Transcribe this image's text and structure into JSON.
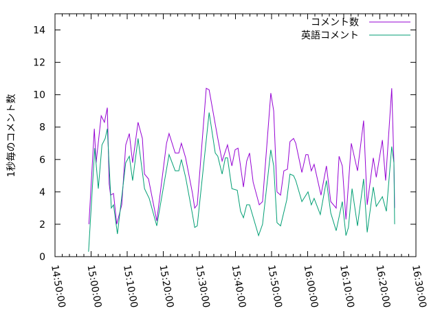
{
  "chart_data": {
    "type": "line",
    "title": "",
    "xlabel": "",
    "ylabel": "1秒毎のコメント数",
    "ylim": [
      0,
      15
    ],
    "yticks": [
      "0",
      "2",
      "4",
      "6",
      "8",
      "10",
      "12",
      "14"
    ],
    "xlim": [
      "14:50:00",
      "16:30:00"
    ],
    "xticks": [
      "14:50:00",
      "15:00:00",
      "15:10:00",
      "15:20:00",
      "15:30:00",
      "15:40:00",
      "15:50:00",
      "16:00:00",
      "16:10:00",
      "16:20:00",
      "16:30:00"
    ],
    "legend_position": "top-right",
    "series": [
      {
        "name": "コメント数",
        "color": "#9400d3",
        "points": [
          [
            "14:59:24",
            2.0
          ],
          [
            "15:00:54",
            7.9
          ],
          [
            "15:01:24",
            5.8
          ],
          [
            "15:02:48",
            8.7
          ],
          [
            "15:03:42",
            8.3
          ],
          [
            "15:04:30",
            9.2
          ],
          [
            "15:05:00",
            4.5
          ],
          [
            "15:05:24",
            3.8
          ],
          [
            "15:06:12",
            3.9
          ],
          [
            "15:07:06",
            2.0
          ],
          [
            "15:08:30",
            3.2
          ],
          [
            "15:09:36",
            6.9
          ],
          [
            "15:10:36",
            7.6
          ],
          [
            "15:11:30",
            5.8
          ],
          [
            "15:13:00",
            8.3
          ],
          [
            "15:14:12",
            7.3
          ],
          [
            "15:14:48",
            5.1
          ],
          [
            "15:15:54",
            4.8
          ],
          [
            "15:18:12",
            2.2
          ],
          [
            "15:20:54",
            7.0
          ],
          [
            "15:21:36",
            7.6
          ],
          [
            "15:23:18",
            6.4
          ],
          [
            "15:24:18",
            6.4
          ],
          [
            "15:25:00",
            7.0
          ],
          [
            "15:26:12",
            6.1
          ],
          [
            "15:28:06",
            3.9
          ],
          [
            "15:28:42",
            3.0
          ],
          [
            "15:29:24",
            3.2
          ],
          [
            "15:31:54",
            10.4
          ],
          [
            "15:32:42",
            10.3
          ],
          [
            "15:35:06",
            7.3
          ],
          [
            "15:36:18",
            5.9
          ],
          [
            "15:37:48",
            6.9
          ],
          [
            "15:39:00",
            5.6
          ],
          [
            "15:39:54",
            6.6
          ],
          [
            "15:40:42",
            6.7
          ],
          [
            "15:42:12",
            4.3
          ],
          [
            "15:43:06",
            5.9
          ],
          [
            "15:43:54",
            6.4
          ],
          [
            "15:44:54",
            4.6
          ],
          [
            "15:46:36",
            3.2
          ],
          [
            "15:47:30",
            3.4
          ],
          [
            "15:49:48",
            10.1
          ],
          [
            "15:50:36",
            9.0
          ],
          [
            "15:51:30",
            4.0
          ],
          [
            "15:52:30",
            3.8
          ],
          [
            "15:53:24",
            5.3
          ],
          [
            "15:54:24",
            5.4
          ],
          [
            "15:55:06",
            7.1
          ],
          [
            "15:56:06",
            7.3
          ],
          [
            "15:56:42",
            7.0
          ],
          [
            "15:58:24",
            5.2
          ],
          [
            "15:59:30",
            6.3
          ],
          [
            "16:00:06",
            6.3
          ],
          [
            "16:01:00",
            5.3
          ],
          [
            "16:01:48",
            5.7
          ],
          [
            "16:03:42",
            3.8
          ],
          [
            "16:05:12",
            5.6
          ],
          [
            "16:06:24",
            3.4
          ],
          [
            "16:07:54",
            3.0
          ],
          [
            "16:08:42",
            6.2
          ],
          [
            "16:09:36",
            5.6
          ],
          [
            "16:10:36",
            2.3
          ],
          [
            "16:12:06",
            7.0
          ],
          [
            "16:13:48",
            5.3
          ],
          [
            "16:15:30",
            8.4
          ],
          [
            "16:16:30",
            3.2
          ],
          [
            "16:18:12",
            6.1
          ],
          [
            "16:19:00",
            4.9
          ],
          [
            "16:20:42",
            7.2
          ],
          [
            "16:21:36",
            4.7
          ],
          [
            "16:23:18",
            10.4
          ],
          [
            "16:23:54",
            5.8
          ],
          [
            "16:24:06",
            3.0
          ]
        ]
      },
      {
        "name": "英語コメント",
        "color": "#009e73",
        "points": [
          [
            "14:59:18",
            0.3
          ],
          [
            "15:01:00",
            6.7
          ],
          [
            "15:02:00",
            4.2
          ],
          [
            "15:03:00",
            6.9
          ],
          [
            "15:03:54",
            7.3
          ],
          [
            "15:04:30",
            7.9
          ],
          [
            "15:05:36",
            3.0
          ],
          [
            "15:06:12",
            3.2
          ],
          [
            "15:07:18",
            1.4
          ],
          [
            "15:09:36",
            5.8
          ],
          [
            "15:10:36",
            6.2
          ],
          [
            "15:11:30",
            4.7
          ],
          [
            "15:13:00",
            7.3
          ],
          [
            "15:14:48",
            4.2
          ],
          [
            "15:16:06",
            3.6
          ],
          [
            "15:18:12",
            1.9
          ],
          [
            "15:21:36",
            6.3
          ],
          [
            "15:23:18",
            5.3
          ],
          [
            "15:24:18",
            5.3
          ],
          [
            "15:25:00",
            6.0
          ],
          [
            "15:26:12",
            4.9
          ],
          [
            "15:28:06",
            2.6
          ],
          [
            "15:28:42",
            1.8
          ],
          [
            "15:29:24",
            1.9
          ],
          [
            "15:32:42",
            8.9
          ],
          [
            "15:34:24",
            6.4
          ],
          [
            "15:35:06",
            6.2
          ],
          [
            "15:36:18",
            5.1
          ],
          [
            "15:37:12",
            6.1
          ],
          [
            "15:37:48",
            6.1
          ],
          [
            "15:39:00",
            4.2
          ],
          [
            "15:40:30",
            4.1
          ],
          [
            "15:41:24",
            2.8
          ],
          [
            "15:42:12",
            2.4
          ],
          [
            "15:43:06",
            3.2
          ],
          [
            "15:43:54",
            3.2
          ],
          [
            "15:46:24",
            1.3
          ],
          [
            "15:47:30",
            2.0
          ],
          [
            "15:49:48",
            6.6
          ],
          [
            "15:50:36",
            5.6
          ],
          [
            "15:51:30",
            2.1
          ],
          [
            "15:52:30",
            1.9
          ],
          [
            "15:54:12",
            3.5
          ],
          [
            "15:55:06",
            5.1
          ],
          [
            "15:56:06",
            5.0
          ],
          [
            "15:56:42",
            4.7
          ],
          [
            "15:58:24",
            3.4
          ],
          [
            "16:00:06",
            4.0
          ],
          [
            "16:01:00",
            3.2
          ],
          [
            "16:01:48",
            3.6
          ],
          [
            "16:03:30",
            2.6
          ],
          [
            "16:05:12",
            4.7
          ],
          [
            "16:06:24",
            2.7
          ],
          [
            "16:07:54",
            1.6
          ],
          [
            "16:09:36",
            3.4
          ],
          [
            "16:10:36",
            1.3
          ],
          [
            "16:11:18",
            1.8
          ],
          [
            "16:12:18",
            4.2
          ],
          [
            "16:13:48",
            1.9
          ],
          [
            "16:15:30",
            4.8
          ],
          [
            "16:16:30",
            1.5
          ],
          [
            "16:18:12",
            4.3
          ],
          [
            "16:19:00",
            3.1
          ],
          [
            "16:20:42",
            3.7
          ],
          [
            "16:21:48",
            2.8
          ],
          [
            "16:23:18",
            6.8
          ],
          [
            "16:23:54",
            5.8
          ],
          [
            "16:24:06",
            2.0
          ]
        ]
      }
    ]
  }
}
